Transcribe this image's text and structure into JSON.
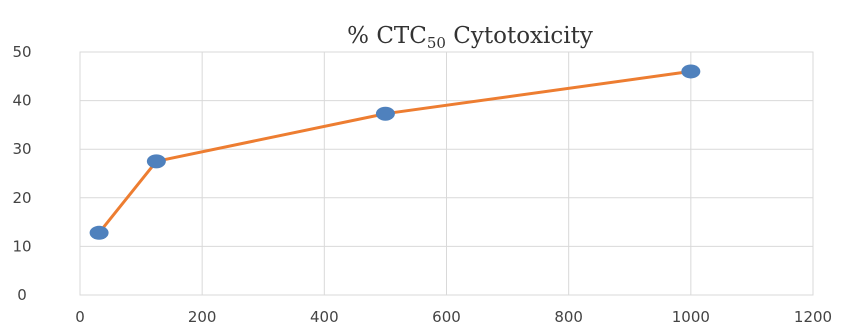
{
  "chart_data": {
    "type": "line",
    "title": {
      "prefix": "% CTC",
      "subscript": "50",
      "suffix": " Cytotoxicity"
    },
    "xlabel": "",
    "ylabel": "",
    "xlim": [
      0,
      1200
    ],
    "ylim": [
      0,
      50
    ],
    "x_ticks": [
      0,
      200,
      400,
      600,
      800,
      1000,
      1200
    ],
    "y_ticks": [
      0,
      10,
      20,
      30,
      40,
      50
    ],
    "grid": true,
    "legend": "none",
    "series": [
      {
        "x": [
          31.25,
          125,
          500,
          1000
        ],
        "y": [
          12.8,
          27.5,
          37.3,
          46.0
        ],
        "line_color": "#ED7D31",
        "marker_color": "#4F81BD"
      }
    ]
  }
}
